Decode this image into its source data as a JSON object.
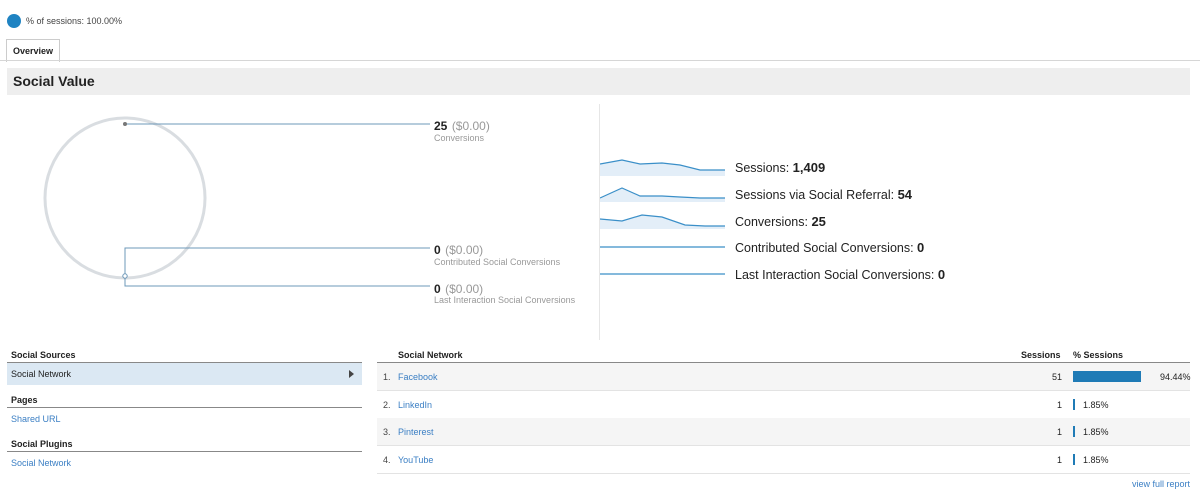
{
  "segment": {
    "label": "% of sessions: 100.00%",
    "color": "#1f83c2"
  },
  "tabs": [
    {
      "label": "Overview"
    }
  ],
  "section": {
    "title": "Social Value"
  },
  "funnel": {
    "top": {
      "value": "25",
      "money": "($0.00)",
      "caption": "Conversions"
    },
    "mid": {
      "value": "0",
      "money": "($0.00)",
      "caption": "Contributed Social Conversions"
    },
    "bot": {
      "value": "0",
      "money": "($0.00)",
      "caption": "Last Interaction Social Conversions"
    }
  },
  "metrics": [
    {
      "label": "Sessions: ",
      "value": "1,409"
    },
    {
      "label": "Sessions via Social Referral: ",
      "value": "54"
    },
    {
      "label": "Conversions: ",
      "value": "25"
    },
    {
      "label": "Contributed Social Conversions: ",
      "value": "0"
    },
    {
      "label": "Last Interaction Social Conversions: ",
      "value": "0"
    }
  ],
  "left_panel": {
    "sources_header": "Social Sources",
    "sources_item": "Social Network",
    "pages_header": "Pages",
    "pages_item": "Shared URL",
    "plugins_header": "Social Plugins",
    "plugins_item": "Social Network"
  },
  "table": {
    "headers": {
      "network": "Social Network",
      "sessions": "Sessions",
      "pct": "% Sessions"
    },
    "rows": [
      {
        "num": "1.",
        "name": "Facebook",
        "sessions": "51",
        "pct": "94.44%",
        "share": 0.9444
      },
      {
        "num": "2.",
        "name": "LinkedIn",
        "sessions": "1",
        "pct": "1.85%",
        "share": 0.0185
      },
      {
        "num": "3.",
        "name": "Pinterest",
        "sessions": "1",
        "pct": "1.85%",
        "share": 0.0185
      },
      {
        "num": "4.",
        "name": "YouTube",
        "sessions": "1",
        "pct": "1.85%",
        "share": 0.0185
      }
    ],
    "footer_link": "view full report"
  },
  "colors": {
    "accent": "#1f7bb6",
    "link": "#3b7fc4",
    "spark_fill": "#e3eef8",
    "spark_line": "#3a8fc8"
  }
}
